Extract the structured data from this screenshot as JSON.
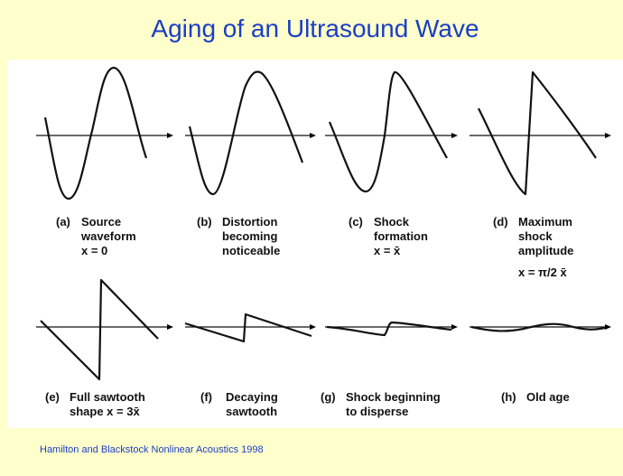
{
  "title": "Aging of an Ultrasound Wave",
  "panels": [
    {
      "letter": "(a)",
      "lines": [
        "Source",
        "waveform",
        "x = 0"
      ]
    },
    {
      "letter": "(b)",
      "lines": [
        "Distortion",
        "becoming",
        "noticeable"
      ]
    },
    {
      "letter": "(c)",
      "lines": [
        "Shock",
        "formation",
        "x = x̄"
      ]
    },
    {
      "letter": "(d)",
      "lines": [
        "Maximum",
        "shock",
        "amplitude",
        "x = π/2 x̄"
      ]
    },
    {
      "letter": "(e)",
      "lines": [
        "Full sawtooth",
        "shape x = 3x̄"
      ]
    },
    {
      "letter": "(f)",
      "lines": [
        "Decaying",
        "sawtooth"
      ]
    },
    {
      "letter": "(g)",
      "lines": [
        "Shock beginning",
        "to disperse"
      ]
    },
    {
      "letter": "(h)",
      "lines": [
        "Old age"
      ]
    }
  ],
  "citation": "Hamilton and Blackstock Nonlinear Acoustics 1998"
}
